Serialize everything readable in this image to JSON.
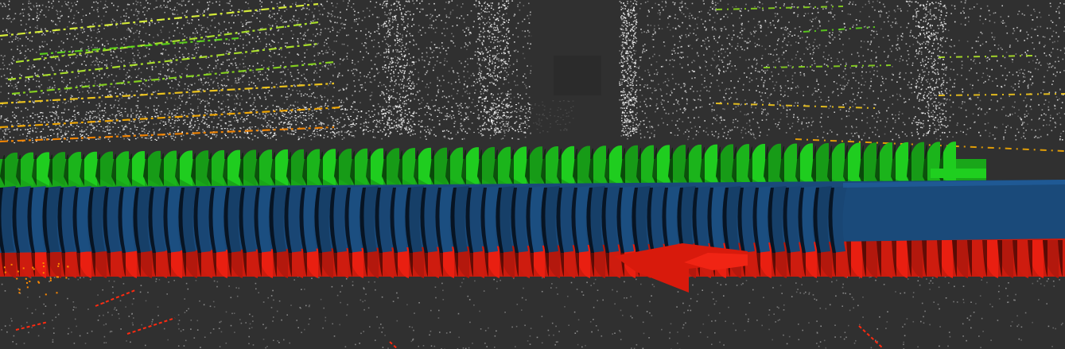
{
  "scene": {
    "background_color": "#303030",
    "point_cloud_color": "#e8e8e8",
    "floor_point_color": "#9a9a9a",
    "grid_color": "#8a9bb0",
    "trajectory_colors": {
      "x_axis_arrows": "#e01e10",
      "y_axis_arrows": "#1fcf1f",
      "z_axis_arrows": "#1a4a7a"
    },
    "lidar_ring_colors": [
      "#e6ff3a",
      "#b6ef2a",
      "#8ee01e",
      "#5fdc19",
      "#ffd21c",
      "#ffb000",
      "#ff8a00",
      "#ff2a10"
    ],
    "icons": [
      "point-cloud",
      "pose-arrow",
      "grid"
    ]
  }
}
